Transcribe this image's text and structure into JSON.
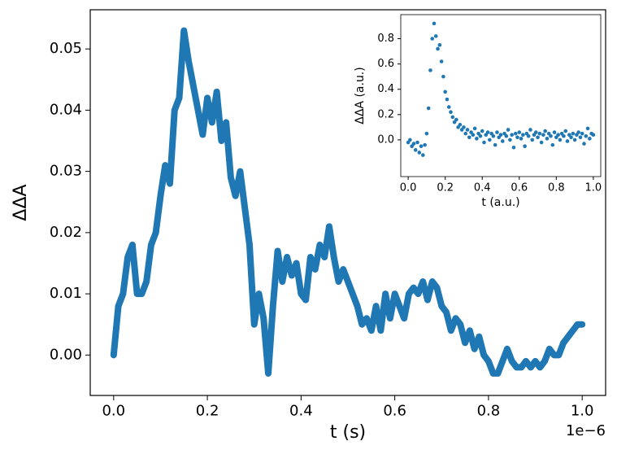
{
  "chart_data": [
    {
      "type": "line",
      "x_label": "t (s)",
      "y_label": "ΔΔA",
      "x_offset": "1e−6",
      "color": "#1f77b4",
      "xlim": [
        -5e-08,
        1.05e-06
      ],
      "xticks": [
        {
          "value": 0,
          "label": "0.0"
        },
        {
          "value": 2e-07,
          "label": "0.2"
        },
        {
          "value": 4e-07,
          "label": "0.4"
        },
        {
          "value": 6e-07,
          "label": "0.6"
        },
        {
          "value": 8e-07,
          "label": "0.8"
        },
        {
          "value": 1e-06,
          "label": "1.0"
        }
      ],
      "ylim": [
        -0.0066,
        0.0564
      ],
      "yticks": [
        {
          "value": 0,
          "label": "0.00"
        },
        0.01,
        0.02,
        0.03,
        0.04,
        0.05
      ],
      "x": [
        0.0,
        1e-08,
        2e-08,
        3e-08,
        4e-08,
        5e-08,
        6e-08,
        7e-08,
        8e-08,
        9e-08,
        1e-07,
        1.1e-07,
        1.2e-07,
        1.3e-07,
        1.4e-07,
        1.5e-07,
        1.6e-07,
        1.7e-07,
        1.8e-07,
        1.9e-07,
        2e-07,
        2.1e-07,
        2.2e-07,
        2.3e-07,
        2.4e-07,
        2.5e-07,
        2.6e-07,
        2.7e-07,
        2.8e-07,
        2.9e-07,
        3e-07,
        3.1e-07,
        3.2e-07,
        3.3e-07,
        3.4e-07,
        3.5e-07,
        3.6e-07,
        3.7e-07,
        3.8e-07,
        3.9e-07,
        4e-07,
        4.1e-07,
        4.2e-07,
        4.3e-07,
        4.4e-07,
        4.5e-07,
        4.6e-07,
        4.7e-07,
        4.8e-07,
        4.9e-07,
        5e-07,
        5.1e-07,
        5.2e-07,
        5.3e-07,
        5.4e-07,
        5.5e-07,
        5.6e-07,
        5.7e-07,
        5.8e-07,
        5.9e-07,
        6e-07,
        6.1e-07,
        6.2e-07,
        6.3e-07,
        6.4e-07,
        6.5e-07,
        6.6e-07,
        6.7e-07,
        6.8e-07,
        6.9e-07,
        7e-07,
        7.1e-07,
        7.2e-07,
        7.3e-07,
        7.4e-07,
        7.5e-07,
        7.6e-07,
        7.7e-07,
        7.8e-07,
        7.9e-07,
        8e-07,
        8.1e-07,
        8.2e-07,
        8.3e-07,
        8.4e-07,
        8.5e-07,
        8.6e-07,
        8.7e-07,
        8.8e-07,
        8.9e-07,
        9e-07,
        9.1e-07,
        9.2e-07,
        9.3e-07,
        9.4e-07,
        9.5e-07,
        9.6e-07,
        9.7e-07,
        9.8e-07,
        9.9e-07,
        1e-06
      ],
      "values": [
        0.0,
        0.008,
        0.01,
        0.016,
        0.018,
        0.01,
        0.01,
        0.012,
        0.018,
        0.02,
        0.026,
        0.031,
        0.028,
        0.04,
        0.042,
        0.053,
        0.048,
        0.044,
        0.04,
        0.036,
        0.042,
        0.038,
        0.043,
        0.035,
        0.038,
        0.029,
        0.026,
        0.03,
        0.024,
        0.018,
        0.005,
        0.01,
        0.006,
        -0.003,
        0.008,
        0.017,
        0.012,
        0.016,
        0.013,
        0.015,
        0.01,
        0.009,
        0.016,
        0.014,
        0.018,
        0.016,
        0.021,
        0.016,
        0.012,
        0.014,
        0.012,
        0.01,
        0.008,
        0.005,
        0.006,
        0.004,
        0.008,
        0.004,
        0.01,
        0.006,
        0.01,
        0.008,
        0.006,
        0.01,
        0.011,
        0.01,
        0.012,
        0.009,
        0.012,
        0.011,
        0.008,
        0.007,
        0.004,
        0.006,
        0.005,
        0.002,
        0.004,
        0.001,
        0.003,
        0.0,
        -0.001,
        -0.003,
        -0.003,
        -0.001,
        0.001,
        -0.001,
        -0.002,
        -0.002,
        -0.001,
        -0.002,
        -0.001,
        -0.002,
        -0.001,
        0.001,
        0.0,
        0.0,
        0.002,
        0.003,
        0.004,
        0.005,
        0.005
      ]
    },
    {
      "type": "scatter",
      "x_label": "t (a.u.)",
      "y_label": "ΔΔA (a.u.)",
      "color": "#1f77b4",
      "xlim": [
        -0.04,
        1.04
      ],
      "xticks": [
        {
          "value": 0,
          "label": "0.0"
        },
        0.2,
        0.4,
        0.6,
        0.8,
        {
          "value": 1,
          "label": "1.0"
        }
      ],
      "ylim": [
        -0.29,
        0.99
      ],
      "yticks": [
        {
          "value": 0,
          "label": "0.0"
        },
        0.2,
        0.4,
        0.6,
        0.8
      ],
      "x": [
        0.0,
        0.01,
        0.02,
        0.03,
        0.04,
        0.05,
        0.06,
        0.07,
        0.08,
        0.09,
        0.1,
        0.11,
        0.12,
        0.13,
        0.14,
        0.15,
        0.16,
        0.17,
        0.18,
        0.19,
        0.2,
        0.21,
        0.22,
        0.23,
        0.24,
        0.25,
        0.26,
        0.27,
        0.28,
        0.29,
        0.3,
        0.31,
        0.32,
        0.33,
        0.34,
        0.35,
        0.36,
        0.37,
        0.38,
        0.39,
        0.4,
        0.41,
        0.42,
        0.43,
        0.44,
        0.45,
        0.46,
        0.47,
        0.48,
        0.49,
        0.5,
        0.51,
        0.52,
        0.53,
        0.54,
        0.55,
        0.56,
        0.57,
        0.58,
        0.59,
        0.6,
        0.61,
        0.62,
        0.63,
        0.64,
        0.65,
        0.66,
        0.67,
        0.68,
        0.69,
        0.7,
        0.71,
        0.72,
        0.73,
        0.74,
        0.75,
        0.76,
        0.77,
        0.78,
        0.79,
        0.8,
        0.81,
        0.82,
        0.83,
        0.84,
        0.85,
        0.86,
        0.87,
        0.88,
        0.89,
        0.9,
        0.91,
        0.92,
        0.93,
        0.94,
        0.95,
        0.96,
        0.97,
        0.98,
        0.99,
        1.0
      ],
      "values": [
        -0.02,
        0.0,
        -0.05,
        -0.03,
        -0.08,
        -0.02,
        -0.1,
        -0.05,
        -0.12,
        -0.04,
        0.05,
        0.25,
        0.55,
        0.8,
        0.92,
        0.82,
        0.72,
        0.75,
        0.62,
        0.5,
        0.38,
        0.32,
        0.26,
        0.22,
        0.18,
        0.14,
        0.16,
        0.1,
        0.12,
        0.08,
        0.1,
        0.05,
        0.08,
        0.02,
        0.06,
        0.04,
        0.09,
        0.01,
        0.05,
        0.03,
        0.07,
        -0.02,
        0.04,
        0.06,
        0.0,
        0.05,
        0.03,
        -0.04,
        0.06,
        0.02,
        0.04,
        -0.01,
        0.05,
        0.03,
        0.08,
        0.0,
        0.04,
        -0.06,
        0.05,
        0.02,
        0.06,
        0.01,
        0.04,
        -0.05,
        0.05,
        0.03,
        0.08,
        0.0,
        0.04,
        0.06,
        0.02,
        0.05,
        -0.02,
        0.04,
        0.07,
        0.01,
        0.05,
        0.03,
        -0.04,
        0.06,
        0.02,
        0.04,
        0.0,
        0.05,
        0.03,
        0.07,
        -0.01,
        0.04,
        0.02,
        0.05,
        0.0,
        0.04,
        0.06,
        0.02,
        0.05,
        -0.03,
        0.03,
        0.09,
        0.01,
        0.05,
        0.04
      ]
    }
  ]
}
